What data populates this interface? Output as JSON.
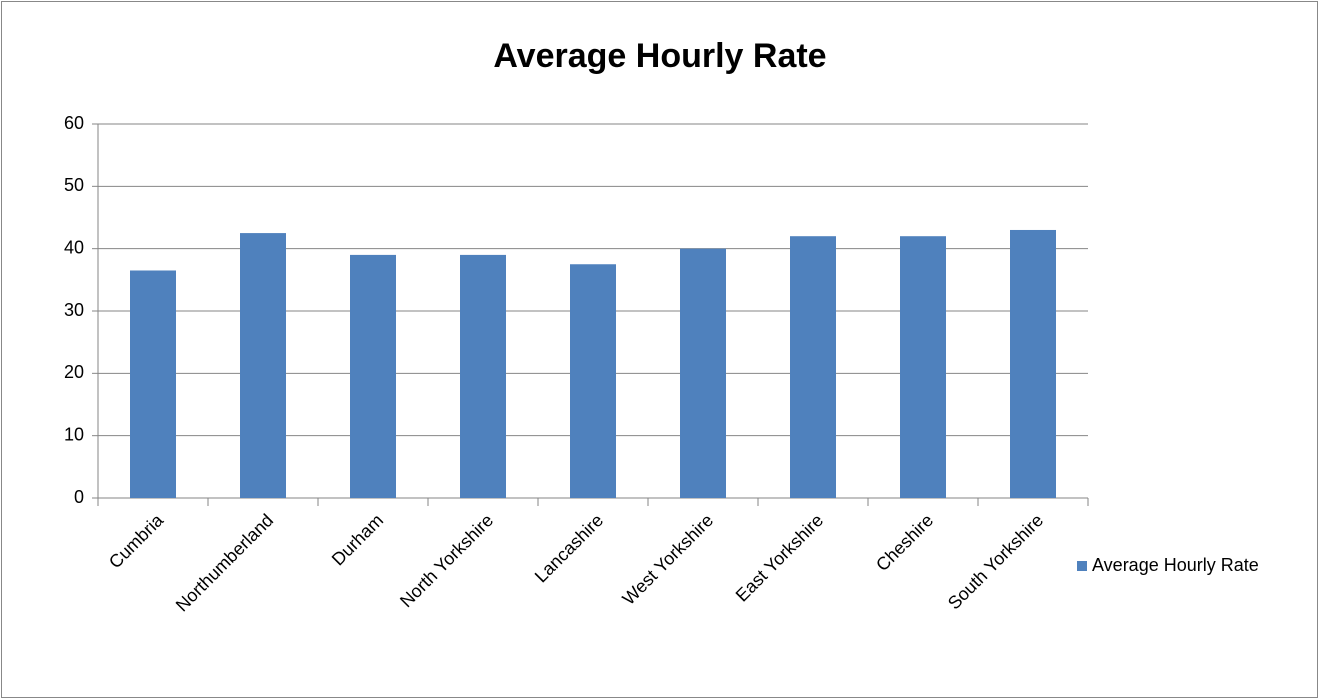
{
  "chart_data": {
    "type": "bar",
    "title": "Average Hourly Rate",
    "categories": [
      "Cumbria",
      "Northumberland",
      "Durham",
      "North Yorkshire",
      "Lancashire",
      "West Yorkshire",
      "East Yorkshire",
      "Cheshire",
      "South Yorkshire"
    ],
    "series": [
      {
        "name": "Average Hourly Rate",
        "color": "#4f81bd",
        "values": [
          36.5,
          42.5,
          39,
          39,
          37.5,
          40,
          42,
          42,
          43
        ]
      }
    ],
    "ylim": [
      0,
      60
    ],
    "yticks": [
      0,
      10,
      20,
      30,
      40,
      50,
      60
    ],
    "grid": true,
    "legend": "right"
  }
}
